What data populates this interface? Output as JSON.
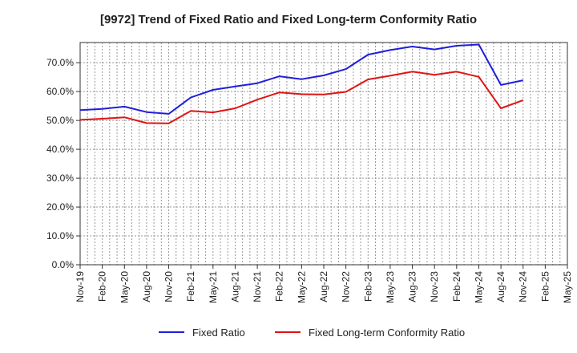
{
  "chart_data": {
    "type": "line",
    "title": "[9972]  Trend of Fixed Ratio and Fixed Long-term Conformity Ratio",
    "x": [
      "Nov-19",
      "Feb-20",
      "May-20",
      "Aug-20",
      "Nov-20",
      "Feb-21",
      "May-21",
      "Aug-21",
      "Nov-21",
      "Feb-22",
      "May-22",
      "Aug-22",
      "Nov-22",
      "Feb-23",
      "May-23",
      "Aug-23",
      "Nov-23",
      "Feb-24",
      "May-24",
      "Aug-24",
      "Nov-24",
      "Feb-25",
      "May-25"
    ],
    "y_ticks": [
      "0.0%",
      "10.0%",
      "20.0%",
      "30.0%",
      "40.0%",
      "50.0%",
      "60.0%",
      "70.0%"
    ],
    "ylim": [
      0,
      77
    ],
    "y_unit": "%",
    "grid": true,
    "legend_position": "bottom",
    "series": [
      {
        "name": "Fixed Ratio",
        "color": "#1f1fdc",
        "values": [
          53.6,
          54.0,
          54.8,
          52.9,
          52.3,
          58.0,
          60.6,
          61.8,
          62.9,
          65.3,
          64.3,
          65.6,
          67.8,
          72.8,
          74.4,
          75.6,
          74.6,
          75.9,
          76.3,
          62.3,
          63.9,
          null,
          null
        ]
      },
      {
        "name": "Fixed Long-term Conformity Ratio",
        "color": "#e01414",
        "values": [
          50.2,
          50.6,
          51.1,
          49.1,
          49.0,
          53.3,
          52.8,
          54.2,
          57.2,
          59.7,
          59.1,
          59.0,
          59.9,
          64.2,
          65.5,
          66.9,
          65.8,
          66.9,
          65.1,
          54.2,
          57.0,
          null,
          null
        ]
      }
    ]
  }
}
